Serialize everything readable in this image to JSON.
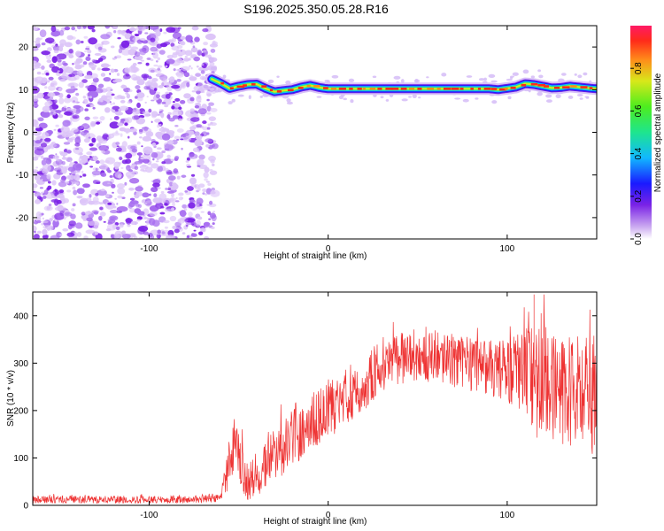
{
  "title": "S196.2025.350.05.28.R16",
  "chart_data": [
    {
      "type": "heatmap",
      "xlabel": "Height of straight line (km)",
      "ylabel": "Frequency (Hz)",
      "xlim": [
        -165,
        150
      ],
      "ylim": [
        -25,
        25
      ],
      "xticks": [
        -100,
        0,
        100
      ],
      "yticks": [
        -20,
        -10,
        0,
        10,
        20
      ],
      "colorbar": {
        "label": "Normalized spectral amplitude",
        "range": [
          0,
          1
        ],
        "ticks": [
          0.0,
          0.2,
          0.4,
          0.6,
          0.8
        ]
      },
      "noise_region_x": [
        -165,
        -65
      ],
      "signal_ridge": {
        "x": [
          -65,
          -60,
          -55,
          -50,
          -45,
          -40,
          -35,
          -30,
          -25,
          -20,
          -15,
          -10,
          -5,
          0,
          10,
          20,
          30,
          40,
          50,
          60,
          70,
          80,
          90,
          95,
          100,
          105,
          110,
          115,
          120,
          125,
          130,
          135,
          140,
          145,
          150
        ],
        "frequency_hz": [
          12.5,
          11.5,
          10.3,
          10.8,
          11.2,
          11.3,
          10.3,
          9.5,
          9.8,
          10.0,
          10.6,
          11.0,
          10.5,
          10.2,
          10.2,
          10.2,
          10.2,
          10.2,
          10.2,
          10.2,
          10.2,
          10.2,
          10.2,
          10.0,
          10.3,
          10.6,
          11.4,
          11.2,
          10.8,
          10.4,
          10.5,
          10.8,
          10.6,
          10.4,
          10.2
        ]
      }
    },
    {
      "type": "line",
      "xlabel": "Height of straight line (km)",
      "ylabel": "SNR (10 * v/v)",
      "xlim": [
        -165,
        150
      ],
      "ylim": [
        0,
        450
      ],
      "xticks": [
        -100,
        0,
        100
      ],
      "yticks": [
        0,
        100,
        200,
        300,
        400
      ],
      "color": "#ee3333",
      "envelope": {
        "x": [
          -165,
          -120,
          -80,
          -60,
          -57,
          -53,
          -50,
          -45,
          -40,
          -35,
          -30,
          -20,
          -10,
          0,
          10,
          20,
          30,
          40,
          60,
          80,
          90,
          100,
          110,
          115,
          120,
          130,
          140,
          150
        ],
        "base": [
          12,
          12,
          12,
          15,
          60,
          120,
          90,
          50,
          60,
          90,
          110,
          140,
          175,
          200,
          230,
          260,
          295,
          310,
          315,
          300,
          290,
          285,
          280,
          270,
          250,
          240,
          230,
          225
        ],
        "noise": [
          8,
          8,
          8,
          8,
          40,
          70,
          60,
          40,
          45,
          55,
          60,
          60,
          60,
          60,
          60,
          60,
          60,
          55,
          55,
          60,
          60,
          70,
          90,
          120,
          130,
          130,
          130,
          120
        ]
      },
      "max_value": 445
    }
  ]
}
